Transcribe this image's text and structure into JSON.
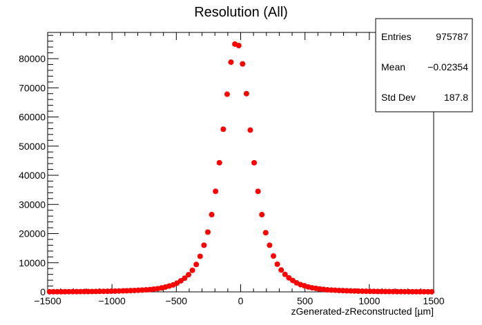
{
  "chart_data": {
    "type": "scatter",
    "title": "Resolution (All)",
    "xlabel": "zGenerated-zReconstructed [µm]",
    "ylabel": "",
    "xlim": [
      -1500,
      1500
    ],
    "ylim": [
      0,
      89000
    ],
    "xticks": [
      -1500,
      -1000,
      -500,
      0,
      500,
      1000,
      1500
    ],
    "yticks": [
      0,
      10000,
      20000,
      30000,
      40000,
      50000,
      60000,
      70000,
      80000
    ],
    "xtick_labels": [
      "−1500",
      "−1000",
      "−500",
      "0",
      "500",
      "1000",
      "1500"
    ],
    "ytick_labels": [
      "0",
      "10000",
      "20000",
      "30000",
      "40000",
      "50000",
      "60000",
      "70000",
      "80000"
    ],
    "marker_color": "#ff0000",
    "grid": false,
    "legend": "top-right",
    "stats": {
      "rows": [
        {
          "label": "Entries",
          "value": "975787"
        },
        {
          "label": "Mean",
          "value": "−0.02354"
        },
        {
          "label": "Std Dev",
          "value": "187.8"
        }
      ]
    },
    "x": [
      -1485,
      -1455,
      -1425,
      -1395,
      -1365,
      -1335,
      -1305,
      -1275,
      -1245,
      -1215,
      -1185,
      -1155,
      -1125,
      -1095,
      -1065,
      -1035,
      -1005,
      -975,
      -945,
      -915,
      -885,
      -855,
      -825,
      -795,
      -765,
      -735,
      -705,
      -675,
      -645,
      -615,
      -585,
      -555,
      -525,
      -495,
      -465,
      -435,
      -405,
      -375,
      -345,
      -315,
      -285,
      -255,
      -225,
      -195,
      -165,
      -135,
      -105,
      -75,
      -45,
      -15,
      15,
      45,
      75,
      105,
      135,
      165,
      195,
      225,
      255,
      285,
      315,
      345,
      375,
      405,
      435,
      465,
      495,
      525,
      555,
      585,
      615,
      645,
      675,
      705,
      735,
      765,
      795,
      825,
      855,
      885,
      915,
      945,
      975,
      1005,
      1035,
      1065,
      1095,
      1125,
      1155,
      1185,
      1215,
      1245,
      1275,
      1305,
      1335,
      1365,
      1395,
      1425,
      1455,
      1485
    ],
    "y": [
      40,
      45,
      50,
      55,
      60,
      70,
      80,
      90,
      100,
      110,
      120,
      130,
      150,
      170,
      190,
      210,
      240,
      270,
      300,
      340,
      380,
      430,
      480,
      550,
      620,
      700,
      800,
      950,
      1100,
      1350,
      1650,
      2000,
      2400,
      3000,
      3800,
      4700,
      5900,
      7400,
      9400,
      12200,
      16000,
      20500,
      26500,
      34500,
      44300,
      55800,
      67800,
      78800,
      85000,
      84500,
      78200,
      68000,
      55500,
      44300,
      34500,
      26500,
      20300,
      16000,
      12300,
      9500,
      7500,
      6000,
      4800,
      3900,
      3100,
      2500,
      2100,
      1700,
      1400,
      1200,
      1000,
      850,
      700,
      620,
      550,
      480,
      430,
      380,
      340,
      300,
      270,
      240,
      210,
      190,
      170,
      150,
      130,
      120,
      110,
      100,
      90,
      80,
      70,
      65,
      60,
      55,
      50,
      45,
      40,
      40
    ]
  }
}
